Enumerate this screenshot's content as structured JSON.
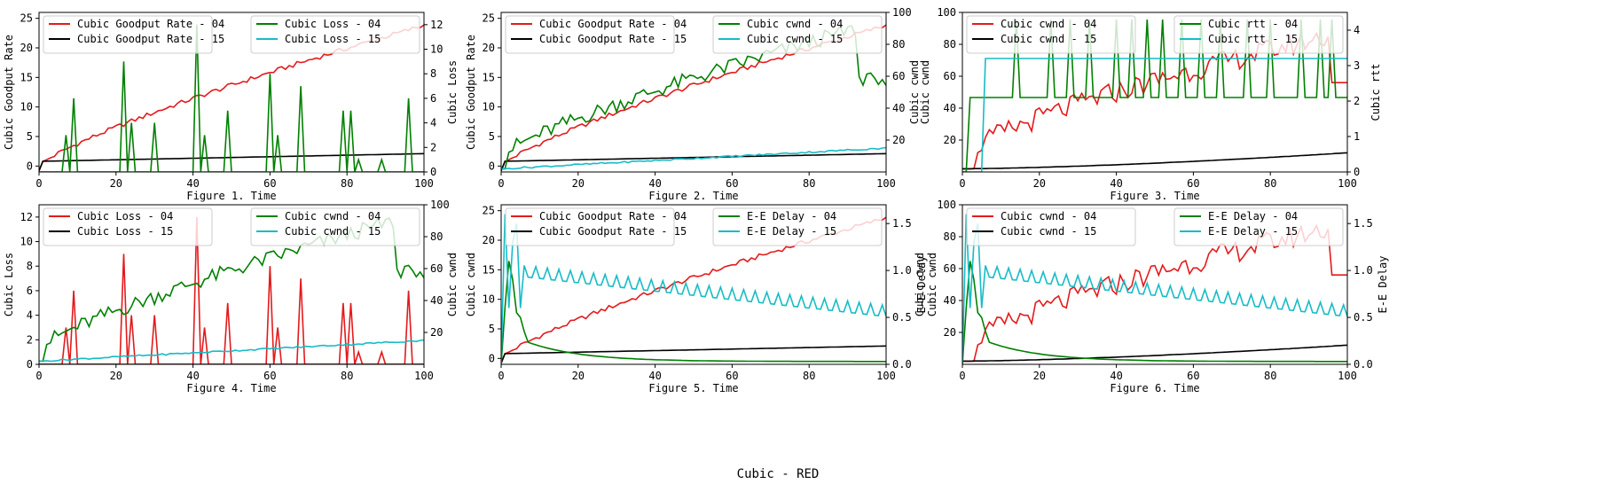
{
  "suptitle": "Cubic - RED",
  "colors": {
    "red": "#e31a1c",
    "black": "#000000",
    "green": "#008000",
    "cyan": "#17bcc6"
  },
  "chart_data": [
    {
      "type": "line",
      "xlabel": "Figure 1. Time",
      "xlim": [
        0,
        100
      ],
      "xticks": [
        0,
        20,
        40,
        60,
        80,
        100
      ],
      "legend_left": "upper-left",
      "legend_right": "upper-right",
      "left": {
        "ylabel": "Cubic Goodput Rate",
        "ylim": [
          -1,
          26
        ],
        "ticks": [
          0,
          5,
          10,
          15,
          20,
          25
        ],
        "series": [
          {
            "name": "Cubic Goodput Rate - 04",
            "color": "red",
            "shape": "goodput04"
          },
          {
            "name": "Cubic Goodput Rate - 15",
            "color": "black",
            "shape": "goodput15"
          }
        ]
      },
      "right": {
        "ylabel": "Cubic Loss",
        "ylim": [
          0,
          13
        ],
        "ticks": [
          0,
          2,
          4,
          6,
          8,
          10,
          12
        ],
        "series": [
          {
            "name": "Cubic Loss - 04",
            "color": "green",
            "shape": "loss04"
          },
          {
            "name": "Cubic Loss - 15",
            "color": "cyan",
            "shape": "zero"
          }
        ]
      }
    },
    {
      "type": "line",
      "xlabel": "Figure 2. Time",
      "xlim": [
        0,
        100
      ],
      "xticks": [
        0,
        20,
        40,
        60,
        80,
        100
      ],
      "legend_left": "upper-left",
      "legend_right": "upper-right",
      "left": {
        "ylabel": "Cubic Goodput Rate",
        "ylim": [
          -1,
          26
        ],
        "ticks": [
          0,
          5,
          10,
          15,
          20,
          25
        ],
        "series": [
          {
            "name": "Cubic Goodput Rate - 04",
            "color": "red",
            "shape": "goodput04"
          },
          {
            "name": "Cubic Goodput Rate - 15",
            "color": "black",
            "shape": "goodput15"
          }
        ]
      },
      "right": {
        "ylabel": "Cubic cwnd",
        "ylabel2": "Cubic cwnd",
        "ylim": [
          0,
          100
        ],
        "ticks": [
          20,
          40,
          60,
          80,
          100
        ],
        "series": [
          {
            "name": "Cubic cwnd - 04",
            "color": "green",
            "shape": "cwnd04"
          },
          {
            "name": "Cubic cwnd - 15",
            "color": "cyan",
            "shape": "cwnd15"
          }
        ]
      }
    },
    {
      "type": "line",
      "xlabel": "Figure 3. Time",
      "xlim": [
        0,
        100
      ],
      "xticks": [
        0,
        20,
        40,
        60,
        80,
        100
      ],
      "legend_left": "upper-left",
      "legend_right": "upper-right",
      "left": {
        "ylabel": "",
        "ylim": [
          0,
          100
        ],
        "ticks": [
          20,
          40,
          60,
          80,
          100
        ],
        "series": [
          {
            "name": "Cubic cwnd - 04",
            "color": "red",
            "shape": "cwnd04b"
          },
          {
            "name": "Cubic cwnd - 15",
            "color": "black",
            "shape": "cwnd15b"
          }
        ]
      },
      "right": {
        "ylabel": "Cubic rtt",
        "ylim": [
          0,
          4.5
        ],
        "ticks": [
          0,
          1,
          2,
          3,
          4
        ],
        "series": [
          {
            "name": "Cubic rtt - 04",
            "color": "green",
            "shape": "rtt04"
          },
          {
            "name": "Cubic rtt - 15",
            "color": "cyan",
            "shape": "rtt15"
          }
        ]
      }
    },
    {
      "type": "line",
      "xlabel": "Figure 4. Time",
      "xlim": [
        0,
        100
      ],
      "xticks": [
        0,
        20,
        40,
        60,
        80,
        100
      ],
      "legend_left": "upper-left",
      "legend_right": "upper-right",
      "left": {
        "ylabel": "Cubic Loss",
        "ylim": [
          0,
          13
        ],
        "ticks": [
          0,
          2,
          4,
          6,
          8,
          10,
          12
        ],
        "series": [
          {
            "name": "Cubic Loss - 04",
            "color": "red",
            "shape": "loss04"
          },
          {
            "name": "Cubic Loss - 15",
            "color": "black",
            "shape": "zero"
          }
        ]
      },
      "right": {
        "ylabel": "Cubic cwnd",
        "ylim": [
          0,
          100
        ],
        "ticks": [
          20,
          40,
          60,
          80,
          100
        ],
        "series": [
          {
            "name": "Cubic cwnd - 04",
            "color": "green",
            "shape": "cwnd04"
          },
          {
            "name": "Cubic cwnd - 15",
            "color": "cyan",
            "shape": "cwnd15"
          }
        ]
      }
    },
    {
      "type": "line",
      "xlabel": "Figure 5. Time",
      "xlim": [
        0,
        100
      ],
      "xticks": [
        0,
        20,
        40,
        60,
        80,
        100
      ],
      "legend_left": "upper-left",
      "legend_right": "upper-right",
      "left": {
        "ylabel": "Cubic cwnd",
        "ylim": [
          -1,
          26
        ],
        "ticks": [
          0,
          5,
          10,
          15,
          20,
          25
        ],
        "series": [
          {
            "name": "Cubic Goodput Rate - 04",
            "color": "red",
            "shape": "goodput04"
          },
          {
            "name": "Cubic Goodput Rate - 15",
            "color": "black",
            "shape": "goodput15"
          }
        ]
      },
      "right": {
        "ylabel": "E-E Delay",
        "ylim": [
          0,
          1.7
        ],
        "ticks": [
          0.0,
          0.5,
          1.0,
          1.5
        ],
        "series": [
          {
            "name": "E-E Delay - 04",
            "color": "green",
            "shape": "delay04"
          },
          {
            "name": "E-E Delay - 15",
            "color": "cyan",
            "shape": "delay15"
          }
        ]
      }
    },
    {
      "type": "line",
      "xlabel": "Figure 6. Time",
      "xlim": [
        0,
        100
      ],
      "xticks": [
        0,
        20,
        40,
        60,
        80,
        100
      ],
      "legend_left": "upper-left",
      "legend_right": "upper-right",
      "left": {
        "ylabel": "Cubic cwnd",
        "ylabel2": "",
        "ylim": [
          0,
          100
        ],
        "ticks": [
          20,
          40,
          60,
          80,
          100
        ],
        "series": [
          {
            "name": "Cubic cwnd - 04",
            "color": "red",
            "shape": "cwnd04b"
          },
          {
            "name": "Cubic cwnd - 15",
            "color": "black",
            "shape": "cwnd15b"
          }
        ]
      },
      "right": {
        "ylabel": "E-E Delay",
        "ylim": [
          0,
          1.7
        ],
        "ticks": [
          0.0,
          0.5,
          1.0,
          1.5
        ],
        "series": [
          {
            "name": "E-E Delay - 04",
            "color": "green",
            "shape": "delay04"
          },
          {
            "name": "E-E Delay - 15",
            "color": "cyan",
            "shape": "delay15"
          }
        ]
      }
    }
  ]
}
